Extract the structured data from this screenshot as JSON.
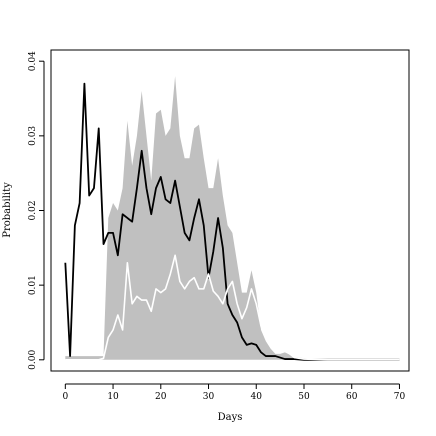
{
  "chart_data": {
    "type": "area",
    "title": "",
    "xlabel": "Days",
    "ylabel": "Probability",
    "xlim": [
      -3,
      72
    ],
    "ylim": [
      -0.0015,
      0.0415
    ],
    "xticks": [
      0,
      10,
      20,
      30,
      40,
      50,
      60,
      70
    ],
    "xtick_labels": [
      "0",
      "10",
      "20",
      "30",
      "40",
      "50",
      "60",
      "70"
    ],
    "yticks": [
      0.0,
      0.01,
      0.02,
      0.03,
      0.04
    ],
    "ytick_labels": [
      "0.00",
      "0.01",
      "0.02",
      "0.03",
      "0.04"
    ],
    "grid": false,
    "colors": {
      "band": "#c0c0c0",
      "black_line": "#000000",
      "white_line": "#ffffff"
    },
    "series": [
      {
        "kind": "band",
        "x": [
          0,
          1,
          2,
          3,
          4,
          5,
          6,
          7,
          8,
          9,
          10,
          11,
          12,
          13,
          14,
          15,
          16,
          17,
          18,
          19,
          20,
          21,
          22,
          23,
          24,
          25,
          26,
          27,
          28,
          29,
          30,
          31,
          32,
          33,
          34,
          35,
          36,
          37,
          38,
          39,
          40,
          41,
          42,
          43,
          44,
          45,
          46,
          47,
          48,
          49,
          50,
          52,
          55,
          60,
          65,
          70
        ],
        "upper": [
          0.0005,
          0.0005,
          0.0005,
          0.0005,
          0.0005,
          0.0005,
          0.0005,
          0.0005,
          0.0005,
          0.019,
          0.021,
          0.02,
          0.023,
          0.032,
          0.026,
          0.03,
          0.036,
          0.03,
          0.024,
          0.033,
          0.0335,
          0.03,
          0.031,
          0.038,
          0.03,
          0.027,
          0.027,
          0.031,
          0.0315,
          0.027,
          0.023,
          0.023,
          0.027,
          0.022,
          0.018,
          0.017,
          0.013,
          0.009,
          0.009,
          0.012,
          0.009,
          0.004,
          0.0025,
          0.0015,
          0.0008,
          0.0008,
          0.001,
          0.0007,
          0.0004,
          0.0003,
          0.0002,
          0.0001,
          0.0001,
          0.0,
          0.0,
          0.0
        ],
        "lower": [
          0.0,
          0.0,
          0.0,
          0.0,
          0.0,
          0.0,
          0.0,
          0.0,
          0.0,
          0.0,
          0.0,
          0.0,
          0.0,
          0.0,
          0.0,
          0.0,
          0.0,
          0.0,
          0.0,
          0.0,
          0.0,
          0.0,
          0.0,
          0.0,
          0.0,
          0.0,
          0.0,
          0.0,
          0.0,
          0.0,
          0.0,
          0.0,
          0.0,
          0.0,
          0.0,
          0.0,
          0.0,
          0.0,
          0.0,
          0.0,
          0.0,
          0.0,
          0.0,
          0.0,
          0.0,
          0.0,
          0.0,
          0.0,
          0.0,
          0.0,
          0.0,
          0.0,
          0.0,
          0.0,
          0.0,
          0.0
        ]
      },
      {
        "kind": "line",
        "color": "#000000",
        "x": [
          0,
          1,
          2,
          3,
          4,
          5,
          6,
          7,
          8,
          9,
          10,
          11,
          12,
          13,
          14,
          15,
          16,
          17,
          18,
          19,
          20,
          21,
          22,
          23,
          24,
          25,
          26,
          27,
          28,
          29,
          30,
          31,
          32,
          33,
          34,
          35,
          36,
          37,
          38,
          39,
          40,
          41,
          42,
          43,
          44,
          45,
          46,
          48,
          50,
          55,
          60,
          65,
          70
        ],
        "y": [
          0.013,
          0.0005,
          0.018,
          0.021,
          0.037,
          0.022,
          0.023,
          0.031,
          0.0155,
          0.017,
          0.017,
          0.014,
          0.0195,
          0.019,
          0.0185,
          0.023,
          0.028,
          0.023,
          0.0195,
          0.023,
          0.0245,
          0.0215,
          0.021,
          0.024,
          0.0205,
          0.017,
          0.016,
          0.019,
          0.0215,
          0.018,
          0.011,
          0.0145,
          0.019,
          0.015,
          0.0075,
          0.006,
          0.005,
          0.003,
          0.002,
          0.0022,
          0.002,
          0.001,
          0.0005,
          0.0005,
          0.0005,
          0.0003,
          0.0001,
          0.0001,
          0.0,
          0.0,
          0.0,
          0.0,
          0.0
        ]
      },
      {
        "kind": "line",
        "color": "#ffffff",
        "x": [
          0,
          1,
          2,
          3,
          4,
          5,
          6,
          7,
          8,
          9,
          10,
          11,
          12,
          13,
          14,
          15,
          16,
          17,
          18,
          19,
          20,
          21,
          22,
          23,
          24,
          25,
          26,
          27,
          28,
          29,
          30,
          31,
          32,
          33,
          34,
          35,
          36,
          37,
          38,
          39,
          40,
          41,
          42,
          43,
          44,
          45,
          46,
          47,
          48,
          49,
          50,
          55,
          60,
          65,
          70
        ],
        "y": [
          0.0,
          0.0,
          0.0,
          0.0,
          0.0,
          0.0,
          0.0,
          0.0,
          0.0002,
          0.003,
          0.004,
          0.006,
          0.004,
          0.013,
          0.0075,
          0.0085,
          0.008,
          0.008,
          0.0065,
          0.0095,
          0.009,
          0.0095,
          0.0115,
          0.014,
          0.0105,
          0.0095,
          0.0105,
          0.011,
          0.0095,
          0.0095,
          0.0115,
          0.0092,
          0.0085,
          0.0075,
          0.0095,
          0.0105,
          0.0075,
          0.0055,
          0.007,
          0.0095,
          0.0075,
          0.0045,
          0.003,
          0.002,
          0.0012,
          0.001,
          0.0012,
          0.0008,
          0.0003,
          0.0002,
          0.0001,
          0.0,
          0.0,
          0.0,
          0.0
        ]
      }
    ]
  }
}
